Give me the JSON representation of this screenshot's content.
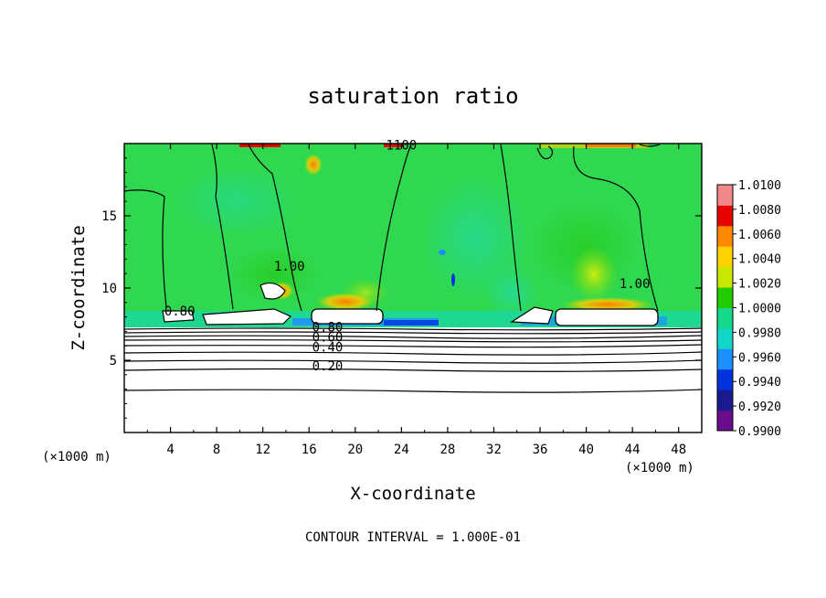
{
  "chart_data": {
    "type": "heatmap",
    "title": "saturation ratio",
    "xlabel": "X-coordinate",
    "ylabel": "Z-coordinate",
    "x_unit": "(×1000 m)",
    "y_unit": "(×1000 m)",
    "xlim": [
      0,
      50
    ],
    "ylim": [
      0,
      20
    ],
    "x_ticks": [
      4,
      8,
      12,
      16,
      20,
      24,
      28,
      32,
      36,
      40,
      44,
      48
    ],
    "y_ticks": [
      5,
      10,
      15
    ],
    "colorbar": {
      "min": 0.99,
      "max": 1.01,
      "levels": [
        "0.9900",
        "0.9920",
        "0.9940",
        "0.9960",
        "0.9980",
        "1.0000",
        "1.0020",
        "1.0040",
        "1.0060",
        "1.0080",
        "1.0100"
      ],
      "colors": [
        "#6a0d8c",
        "#1a1a8f",
        "#0033dd",
        "#1e8fff",
        "#10d7c8",
        "#16d88a",
        "#22cc00",
        "#c8e800",
        "#ffd200",
        "#ff8a00",
        "#e80000",
        "#f08a8a"
      ]
    },
    "contour_labels": [
      {
        "text": "1100",
        "x": 24.0,
        "y": 19.6
      },
      {
        "text": "1.00",
        "x": 14.3,
        "y": 11.2
      },
      {
        "text": "1.00",
        "x": 44.2,
        "y": 10.0
      },
      {
        "text": "0.80",
        "x": 17.6,
        "y": 7.0
      },
      {
        "text": "0.60",
        "x": 17.6,
        "y": 6.3
      },
      {
        "text": "0.40",
        "x": 17.6,
        "y": 5.6
      },
      {
        "text": "0.20",
        "x": 17.6,
        "y": 4.3
      },
      {
        "text": "0.80",
        "x": 4.8,
        "y": 8.1
      }
    ],
    "contour_interval_text": "CONTOUR INTERVAL = 1.000E-01",
    "grid": false,
    "legend": "right-colorbar"
  }
}
